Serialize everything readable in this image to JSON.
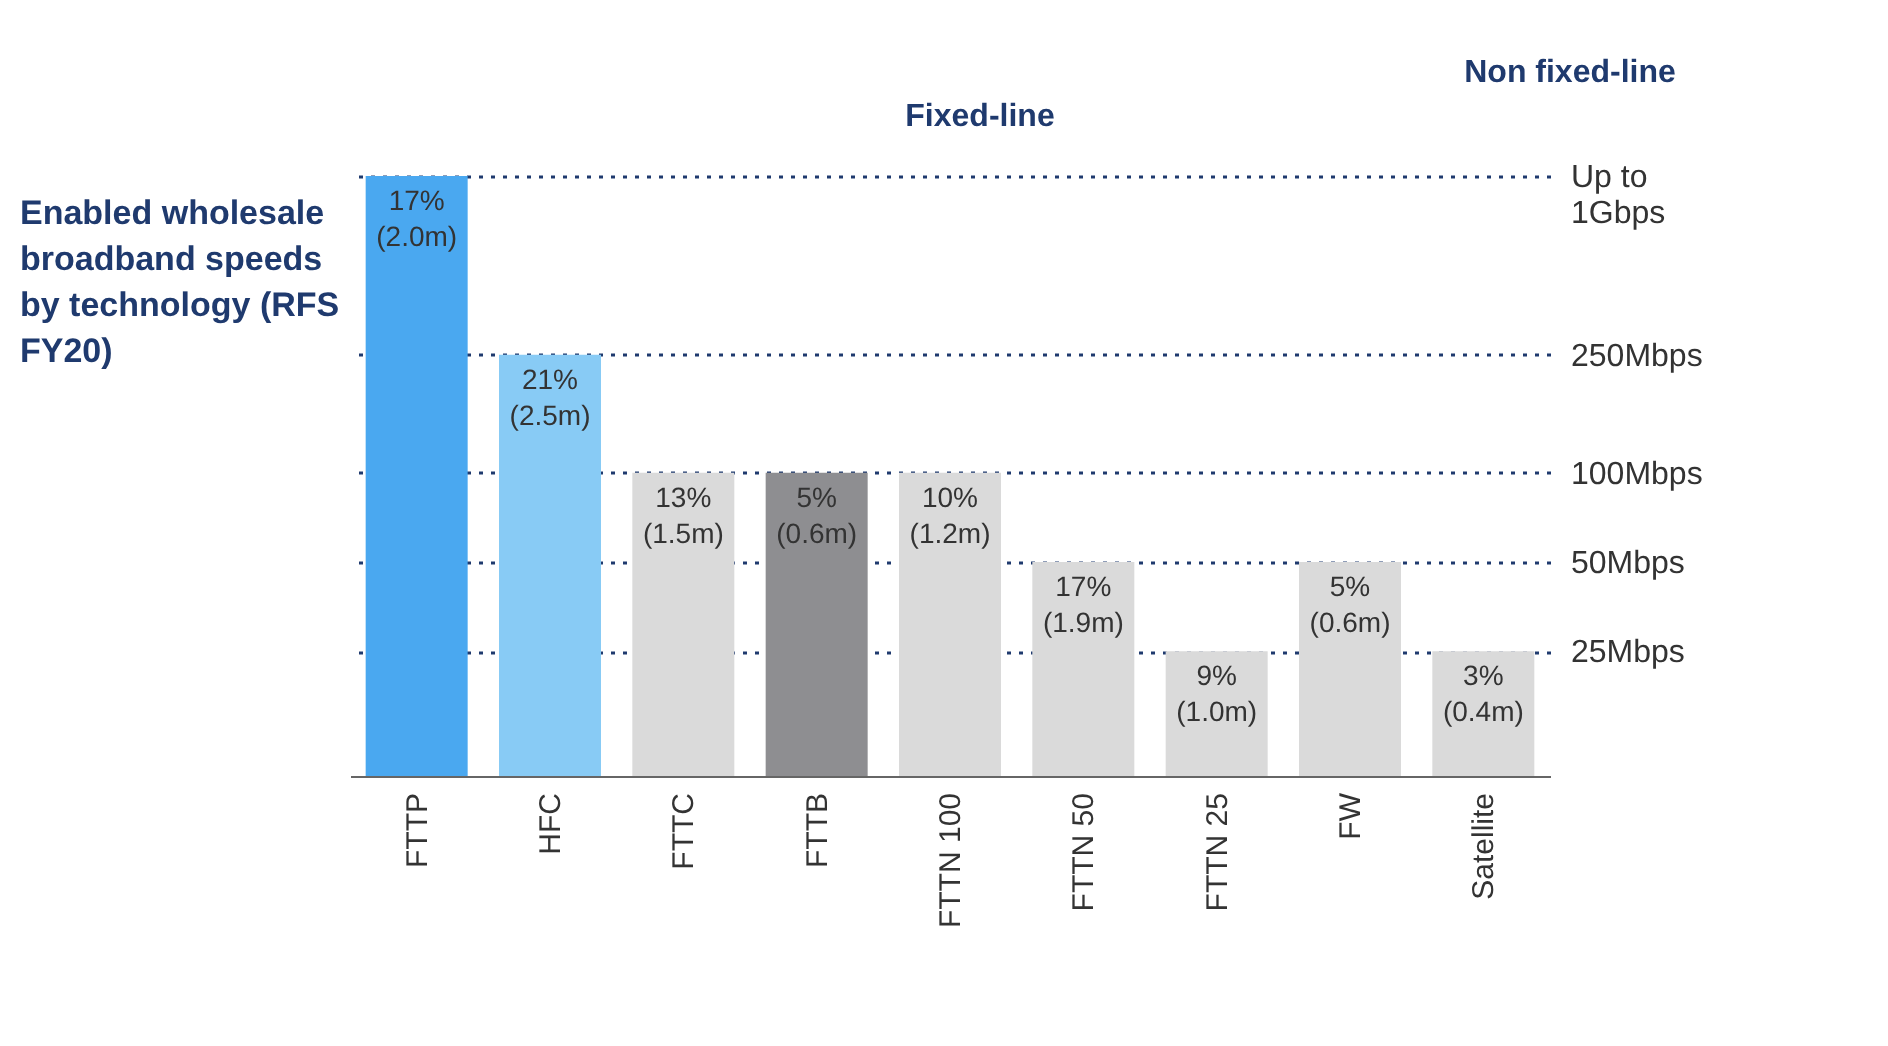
{
  "chart_data": {
    "type": "bar",
    "title": "Enabled wholesale broadband speeds by technology (RFS FY20)",
    "annotations": [
      "Fixed-line",
      "Non fixed-line",
      {
        "text": "17%\n(2.0m)",
        "x": "FTTP",
        "y": 1000
      },
      {
        "text": "21%\n(2.5m)",
        "x": "HFC",
        "y": 250
      },
      {
        "text": "13%\n(1.5m)",
        "x": "FTTC",
        "y": 100
      },
      {
        "text": "5%\n(0.6m)",
        "x": "FTTB",
        "y": 100
      },
      {
        "text": "10%\n(1.2m)",
        "x": "FTTN 100",
        "y": 100
      },
      {
        "text": "17%\n(1.9m)",
        "x": "FTTN 50",
        "y": 50
      },
      {
        "text": "9%\n(1.0m)",
        "x": "FTTN 25",
        "y": 25
      },
      {
        "text": "5%\n(0.6m)",
        "x": "FW",
        "y": 50
      },
      {
        "text": "3%\n(0.4m)",
        "x": "Satellite",
        "y": 25
      }
    ],
    "categories": [
      "FTTP",
      "HFC",
      "FTTC",
      "FTTB",
      "FTTN 100",
      "FTTN 50",
      "FTTN 25",
      "FW",
      "Satellite"
    ],
    "values": [
      1000,
      250,
      100,
      100,
      100,
      50,
      25,
      50,
      25
    ],
    "colors": [
      "#4aa8f0",
      "#88cbf5",
      "#dadada",
      "#8e8e91",
      "#dadada",
      "#dadada",
      "#dadada",
      "#dadada",
      "#dadada"
    ],
    "log": "y",
    "ylim": [
      9.5,
      1000
    ],
    "yticks": [
      {
        "value": 25,
        "label": "25Mbps"
      },
      {
        "value": 50,
        "label": "50Mbps"
      },
      {
        "value": 100,
        "label": "100Mbps"
      },
      {
        "value": 250,
        "label": "250Mbps"
      },
      {
        "value": 1000,
        "label": "Up to\n1Gbps"
      }
    ],
    "grid": "y",
    "line_style": "dotted"
  }
}
